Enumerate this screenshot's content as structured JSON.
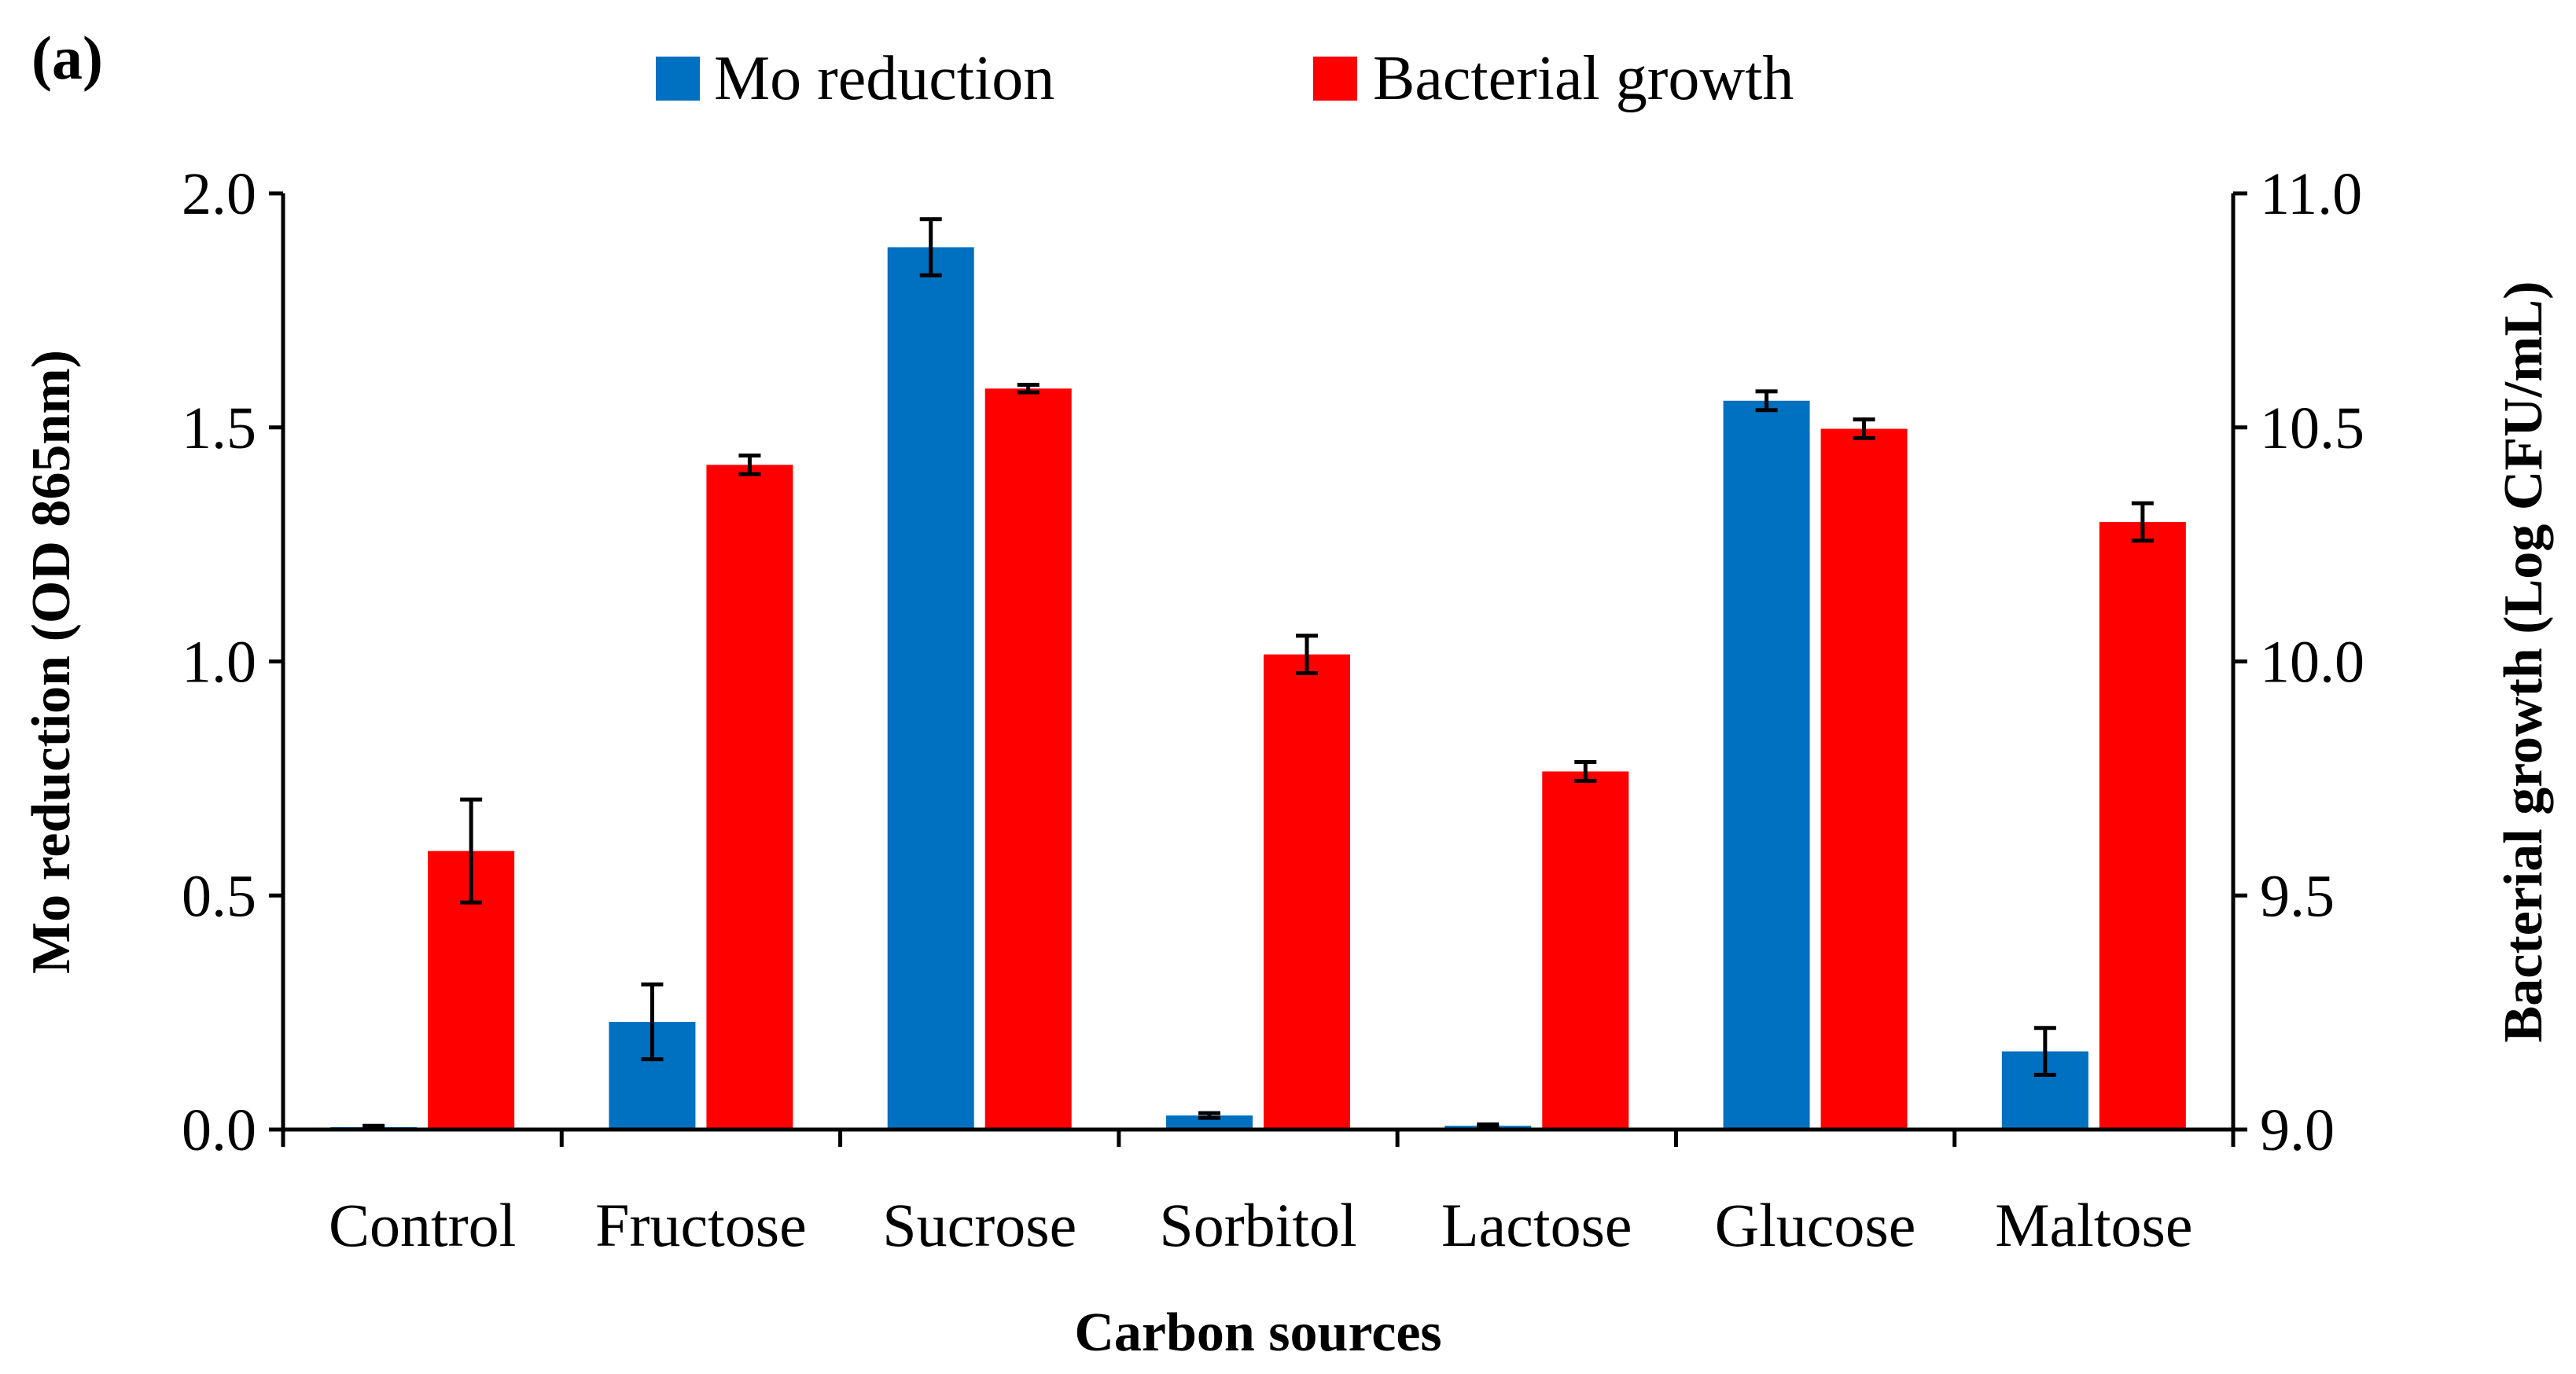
{
  "panel_label": "(a)",
  "colors": {
    "mo_reduction": "#0070C0",
    "bacterial_growth": "#FF0000",
    "axis": "#000000"
  },
  "chart_data": {
    "type": "bar",
    "title": "",
    "panel": "(a)",
    "categories": [
      "Control",
      "Fructose",
      "Sucrose",
      "Sorbitol",
      "Lactose",
      "Glucose",
      "Maltose"
    ],
    "xlabel": "Carbon sources",
    "ylabel": "Mo reduction (OD 865nm)",
    "ylabel_right": "Bacterial growth (Log CFU/mL)",
    "ylim": [
      0.0,
      2.0
    ],
    "ylim_right": [
      9.0,
      11.0
    ],
    "yticks": [
      "0.0",
      "0.5",
      "1.0",
      "1.5",
      "2.0"
    ],
    "yticks_right": [
      "9.0",
      "9.5",
      "10.0",
      "10.5",
      "11.0"
    ],
    "legend_position": "top-center",
    "series": [
      {
        "name": "Mo reduction",
        "axis": "left",
        "color": "#0070C0",
        "values": [
          0.005,
          0.23,
          1.885,
          0.03,
          0.008,
          1.557,
          0.167
        ],
        "errors": [
          0.003,
          0.08,
          0.06,
          0.005,
          0.003,
          0.02,
          0.05
        ]
      },
      {
        "name": "Bacterial growth",
        "axis": "right",
        "color": "#FF0000",
        "values": [
          9.595,
          10.42,
          10.583,
          10.015,
          9.765,
          10.497,
          10.298
        ],
        "errors": [
          0.11,
          0.02,
          0.008,
          0.04,
          0.02,
          0.02,
          0.04
        ]
      }
    ]
  }
}
